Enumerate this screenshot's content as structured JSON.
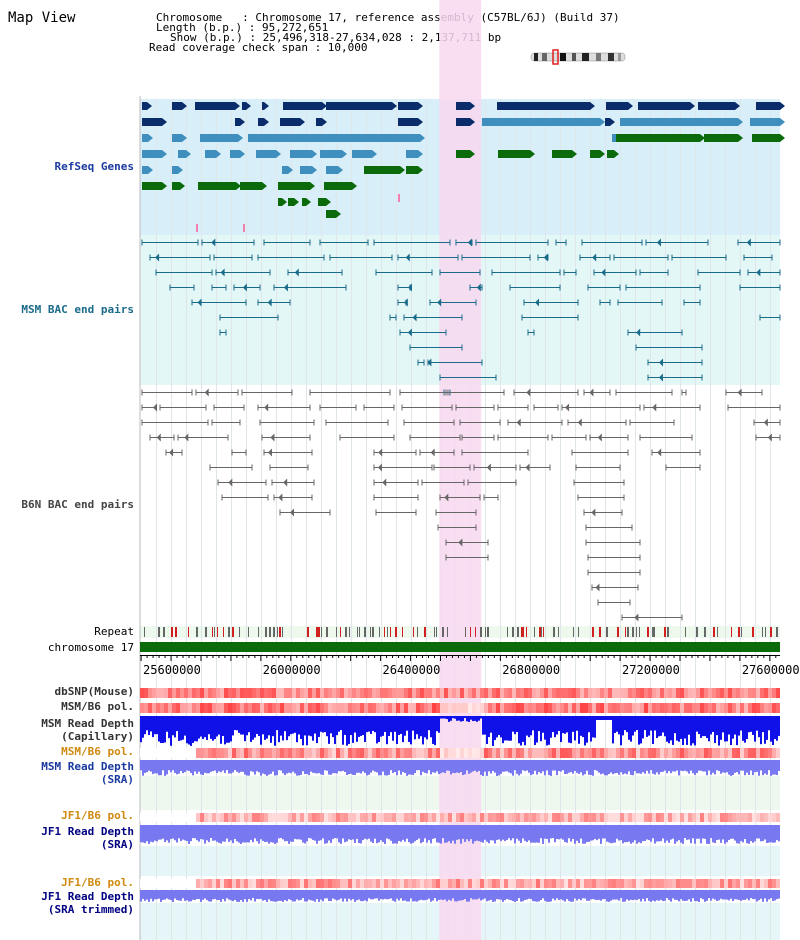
{
  "title": "Map View",
  "info": {
    "line1": "Chromosome   : Chromosome 17, reference assembly (C57BL/6J) (Build 37)",
    "line2": "Length (b.p.) : 95,272,651",
    "line3": "Show (b.p.) : 25,496,318-27,634,028 : 2,137,711 bp",
    "line4": "Read coverage check span : 10,000"
  },
  "tracks": {
    "refseq": "RefSeq Genes",
    "msm_bac": "MSM BAC end pairs",
    "b6n_bac": "B6N BAC end pairs",
    "repeat": "Repeat",
    "chromosome": "chromosome 17",
    "dbsnp": "dbSNP(Mouse)",
    "msm_b6_pol_1": "MSM/B6 pol.",
    "msm_depth_cap_1": "MSM Read Depth",
    "msm_depth_cap_2": "(Capillary)",
    "msm_b6_pol_2": "MSM/B6 pol.",
    "msm_depth_sra_1": "MSM Read Depth",
    "msm_depth_sra_2": "(SRA)",
    "jf1_pol_1": "JF1/B6 pol.",
    "jf1_depth_sra_1": "JF1 Read Depth",
    "jf1_depth_sra_2": "(SRA)",
    "jf1_pol_2": "JF1/B6 pol.",
    "jf1_depth_trim_1": "JF1 Read Depth",
    "jf1_depth_trim_2": "(SRA trimmed)"
  },
  "axis": {
    "ticks": [
      {
        "pos": 25600000,
        "label": "25600000"
      },
      {
        "pos": 26000000,
        "label": "26000000"
      },
      {
        "pos": 26400000,
        "label": "26400000"
      },
      {
        "pos": 26800000,
        "label": "26800000"
      },
      {
        "pos": 27200000,
        "label": "27200000"
      },
      {
        "pos": 27600000,
        "label": "27600000"
      }
    ],
    "start": 25496318,
    "end": 27634028
  },
  "highlight": {
    "start": 26496000,
    "end": 26636000
  },
  "colors": {
    "refseq_bg": "#d8eef8",
    "msm_bg": "#e4f7f7",
    "refseq_dark": "#0a2c6b",
    "refseq_mid": "#3e8fbd",
    "refseq_green": "#0b6b0b",
    "msm_line": "#1a6a8a",
    "b6n_line": "#666666",
    "highlight": "#f8d8f0",
    "chromosome": "#0b6b0b",
    "label_blue": "#1a3aa0",
    "label_teal": "#1a6a8a",
    "label_orange": "#d08a10",
    "label_dark": "#000080"
  }
}
